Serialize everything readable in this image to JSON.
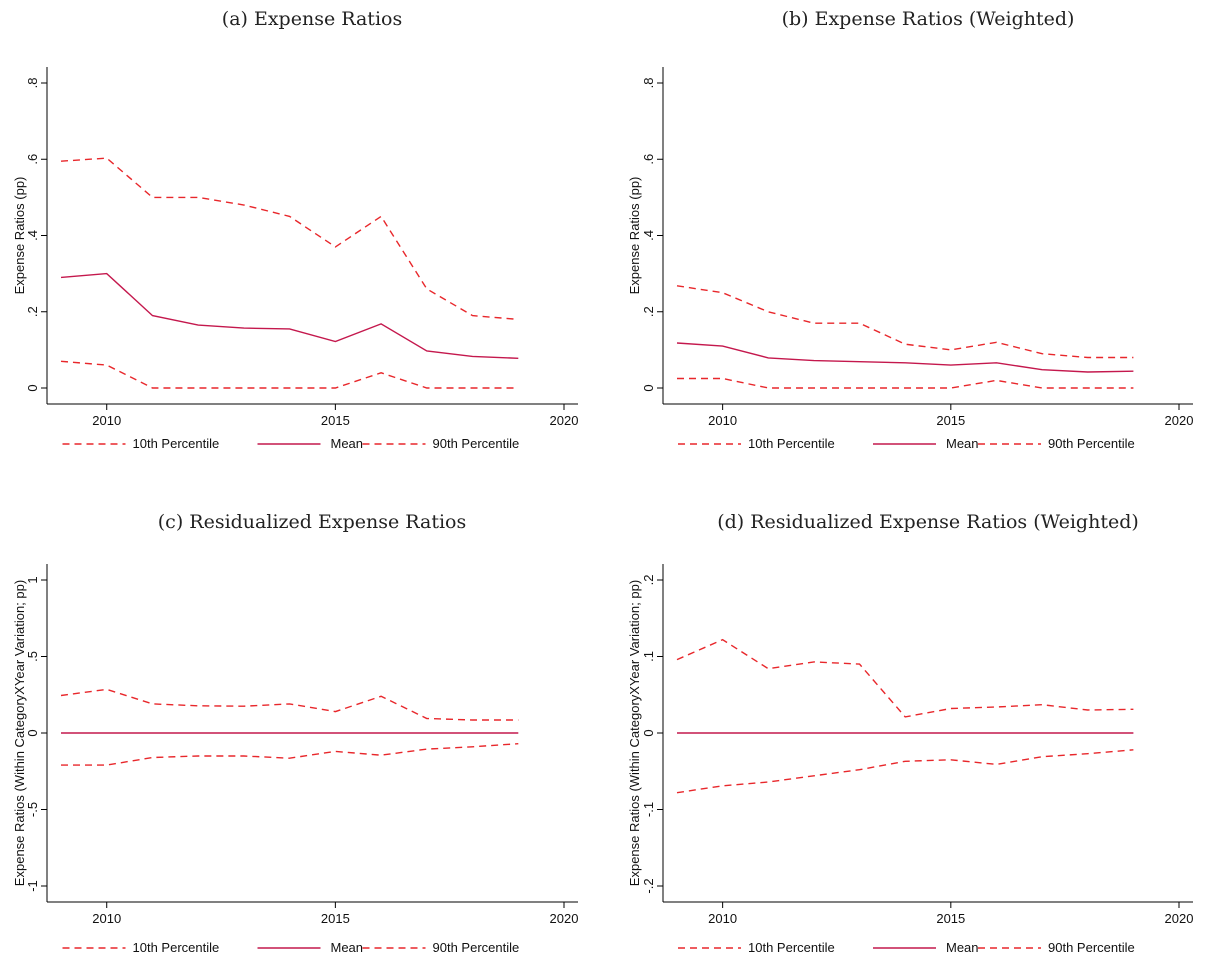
{
  "colors": {
    "dashed": "#e8272b",
    "solid": "#c4184d",
    "axis": "#000000",
    "text": "#111111"
  },
  "chart_data": [
    {
      "type": "line",
      "title": "(a) Expense Ratios",
      "xlabel": "",
      "ylabel": "Expense Ratios (pp)",
      "xlim": [
        2009,
        2020
      ],
      "ylim": [
        0,
        0.8
      ],
      "xticks": [
        2010,
        2015,
        2020
      ],
      "xtick_labels": [
        "2010",
        "2015",
        "2020"
      ],
      "yticks": [
        0,
        0.2,
        0.4,
        0.6,
        0.8
      ],
      "ytick_labels": [
        "0",
        ".2",
        ".4",
        ".6",
        ".8"
      ],
      "grid": false,
      "legend": "bottom",
      "x": [
        2009,
        2010,
        2011,
        2012,
        2013,
        2014,
        2015,
        2016,
        2017,
        2018,
        2019
      ],
      "series": [
        {
          "name": "10th Percentile",
          "style": "dashed",
          "values": [
            0.07,
            0.06,
            0.0,
            0.0,
            0.0,
            0.0,
            0.0,
            0.04,
            0.0,
            0.0,
            0.0
          ]
        },
        {
          "name": "Mean",
          "style": "solid",
          "values": [
            0.29,
            0.3,
            0.19,
            0.165,
            0.157,
            0.155,
            0.122,
            0.168,
            0.097,
            0.083,
            0.078
          ]
        },
        {
          "name": "90th Percentile",
          "style": "dashed",
          "values": [
            0.595,
            0.603,
            0.5,
            0.5,
            0.48,
            0.45,
            0.37,
            0.45,
            0.26,
            0.19,
            0.18
          ]
        }
      ]
    },
    {
      "type": "line",
      "title": "(b) Expense Ratios (Weighted)",
      "xlabel": "",
      "ylabel": "Expense Ratios (pp)",
      "xlim": [
        2009,
        2020
      ],
      "ylim": [
        0,
        0.8
      ],
      "xticks": [
        2010,
        2015,
        2020
      ],
      "xtick_labels": [
        "2010",
        "2015",
        "2020"
      ],
      "yticks": [
        0,
        0.2,
        0.4,
        0.6,
        0.8
      ],
      "ytick_labels": [
        "0",
        ".2",
        ".4",
        ".6",
        ".8"
      ],
      "grid": false,
      "legend": "bottom",
      "x": [
        2009,
        2010,
        2011,
        2012,
        2013,
        2014,
        2015,
        2016,
        2017,
        2018,
        2019
      ],
      "series": [
        {
          "name": "10th Percentile",
          "style": "dashed",
          "values": [
            0.025,
            0.025,
            0.0,
            0.0,
            0.0,
            0.0,
            0.0,
            0.02,
            0.0,
            0.0,
            0.0
          ]
        },
        {
          "name": "Mean",
          "style": "solid",
          "values": [
            0.118,
            0.11,
            0.079,
            0.072,
            0.069,
            0.066,
            0.06,
            0.066,
            0.048,
            0.042,
            0.044
          ]
        },
        {
          "name": "90th Percentile",
          "style": "dashed",
          "values": [
            0.268,
            0.25,
            0.2,
            0.17,
            0.17,
            0.115,
            0.1,
            0.12,
            0.09,
            0.08,
            0.08
          ]
        }
      ]
    },
    {
      "type": "line",
      "title": "(c) Residualized Expense Ratios",
      "xlabel": "",
      "ylabel": "Expense Ratios (Within CategoryXYear Variation; pp)",
      "xlim": [
        2009,
        2020
      ],
      "ylim": [
        -1,
        1
      ],
      "xticks": [
        2010,
        2015,
        2020
      ],
      "xtick_labels": [
        "2010",
        "2015",
        "2020"
      ],
      "yticks": [
        -1,
        -0.5,
        0,
        0.5,
        1
      ],
      "ytick_labels": [
        "-1",
        "-.5",
        "0",
        ".5",
        "1"
      ],
      "grid": false,
      "legend": "bottom",
      "x": [
        2009,
        2010,
        2011,
        2012,
        2013,
        2014,
        2015,
        2016,
        2017,
        2018,
        2019
      ],
      "series": [
        {
          "name": "10th Percentile",
          "style": "dashed",
          "values": [
            -0.21,
            -0.21,
            -0.16,
            -0.15,
            -0.15,
            -0.165,
            -0.12,
            -0.145,
            -0.105,
            -0.09,
            -0.07
          ]
        },
        {
          "name": "Mean",
          "style": "solid",
          "values": [
            0,
            0,
            0,
            0,
            0,
            0,
            0,
            0,
            0,
            0,
            0
          ]
        },
        {
          "name": "90th Percentile",
          "style": "dashed",
          "values": [
            0.245,
            0.285,
            0.19,
            0.178,
            0.175,
            0.19,
            0.14,
            0.24,
            0.095,
            0.085,
            0.085
          ]
        }
      ]
    },
    {
      "type": "line",
      "title": "(d) Residualized Expense Ratios (Weighted)",
      "xlabel": "",
      "ylabel": "Expense Ratios (Within CategoryXYear Variation; pp)",
      "xlim": [
        2009,
        2020
      ],
      "ylim": [
        -0.2,
        0.2
      ],
      "xticks": [
        2010,
        2015,
        2020
      ],
      "xtick_labels": [
        "2010",
        "2015",
        "2020"
      ],
      "yticks": [
        -0.2,
        -0.1,
        0,
        0.1,
        0.2
      ],
      "ytick_labels": [
        "-.2",
        "-.1",
        "0",
        ".1",
        ".2"
      ],
      "grid": false,
      "legend": "bottom",
      "x": [
        2009,
        2010,
        2011,
        2012,
        2013,
        2014,
        2015,
        2016,
        2017,
        2018,
        2019
      ],
      "series": [
        {
          "name": "10th Percentile",
          "style": "dashed",
          "values": [
            -0.078,
            -0.069,
            -0.064,
            -0.056,
            -0.048,
            -0.037,
            -0.035,
            -0.041,
            -0.031,
            -0.027,
            -0.022
          ]
        },
        {
          "name": "Mean",
          "style": "solid",
          "values": [
            0,
            0,
            0,
            0,
            0,
            0,
            0,
            0,
            0,
            0,
            0
          ]
        },
        {
          "name": "90th Percentile",
          "style": "dashed",
          "values": [
            0.096,
            0.122,
            0.084,
            0.093,
            0.09,
            0.021,
            0.032,
            0.034,
            0.037,
            0.03,
            0.031
          ]
        }
      ]
    }
  ]
}
